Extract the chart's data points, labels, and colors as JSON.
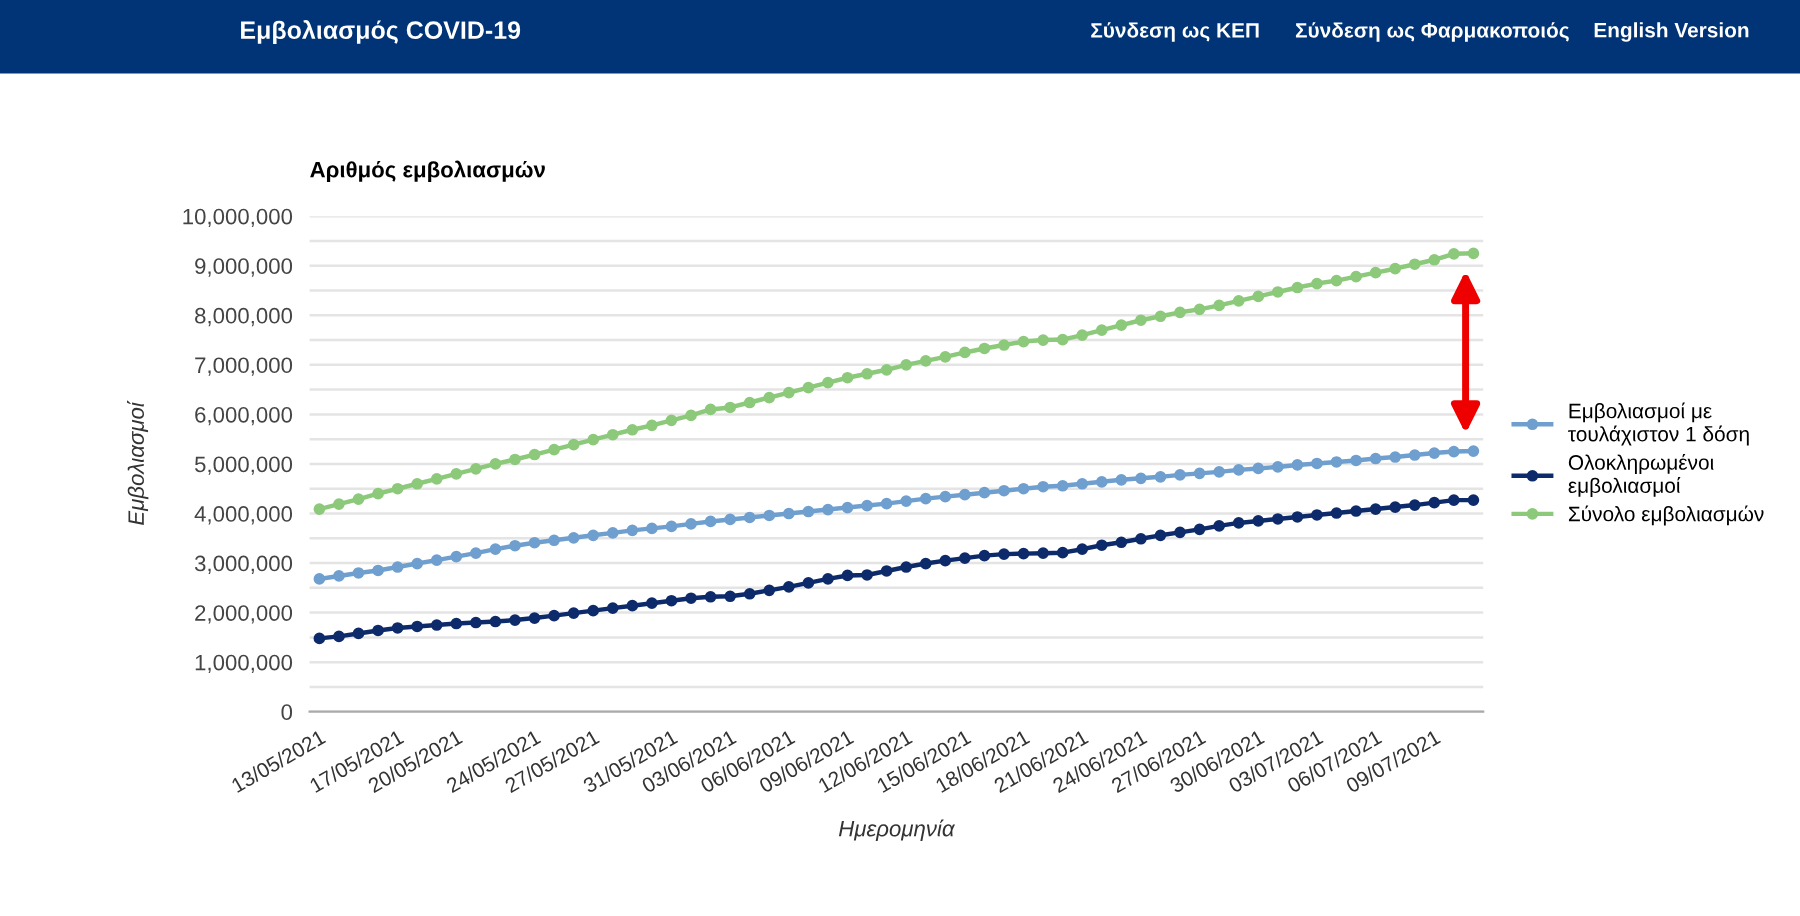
{
  "chart_data": {
    "type": "line",
    "title": "Αριθμός εμβολιασμών",
    "xlabel": "Ημερομηνία",
    "ylabel": "Εμβολιασμοί",
    "annotations": [
      "Εμβολιασμός COVID-19",
      "Σύνδεση ως ΚΕΠ",
      "Σύνδεση ως Φαρμακοποιός",
      "English Version"
    ],
    "x": [
      "2021-05-13",
      "2021-05-14",
      "2021-05-15",
      "2021-05-16",
      "2021-05-17",
      "2021-05-18",
      "2021-05-19",
      "2021-05-20",
      "2021-05-21",
      "2021-05-22",
      "2021-05-23",
      "2021-05-24",
      "2021-05-25",
      "2021-05-26",
      "2021-05-27",
      "2021-05-28",
      "2021-05-29",
      "2021-05-30",
      "2021-05-31",
      "2021-06-01",
      "2021-06-02",
      "2021-06-03",
      "2021-06-04",
      "2021-06-05",
      "2021-06-06",
      "2021-06-07",
      "2021-06-08",
      "2021-06-09",
      "2021-06-10",
      "2021-06-11",
      "2021-06-12",
      "2021-06-13",
      "2021-06-14",
      "2021-06-15",
      "2021-06-16",
      "2021-06-17",
      "2021-06-18",
      "2021-06-19",
      "2021-06-20",
      "2021-06-21",
      "2021-06-22",
      "2021-06-23",
      "2021-06-24",
      "2021-06-25",
      "2021-06-26",
      "2021-06-27",
      "2021-06-28",
      "2021-06-29",
      "2021-06-30",
      "2021-07-01",
      "2021-07-02",
      "2021-07-03",
      "2021-07-04",
      "2021-07-05",
      "2021-07-06",
      "2021-07-07",
      "2021-07-08",
      "2021-07-09",
      "2021-07-10",
      "2021-07-11"
    ],
    "series": [
      {
        "name": "Εμβολιασμοί με τουλάχιστον 1 δόση",
        "color": "#6f9fcf",
        "values": [
          2680000,
          2740000,
          2800000,
          2850000,
          2920000,
          2990000,
          3060000,
          3130000,
          3200000,
          3280000,
          3350000,
          3410000,
          3460000,
          3510000,
          3560000,
          3610000,
          3660000,
          3700000,
          3740000,
          3790000,
          3840000,
          3880000,
          3920000,
          3960000,
          4000000,
          4040000,
          4080000,
          4120000,
          4160000,
          4200000,
          4250000,
          4300000,
          4340000,
          4380000,
          4420000,
          4460000,
          4500000,
          4540000,
          4560000,
          4600000,
          4640000,
          4680000,
          4710000,
          4740000,
          4780000,
          4810000,
          4840000,
          4880000,
          4910000,
          4940000,
          4980000,
          5010000,
          5040000,
          5070000,
          5110000,
          5140000,
          5180000,
          5220000,
          5250000,
          5260000
        ]
      },
      {
        "name": "Ολοκληρωμένοι εμβολιασμοί",
        "color": "#0d2b6b",
        "values": [
          1480000,
          1520000,
          1580000,
          1640000,
          1690000,
          1720000,
          1750000,
          1780000,
          1800000,
          1820000,
          1850000,
          1890000,
          1940000,
          1990000,
          2040000,
          2090000,
          2140000,
          2190000,
          2240000,
          2290000,
          2320000,
          2330000,
          2380000,
          2450000,
          2520000,
          2600000,
          2680000,
          2750000,
          2760000,
          2840000,
          2920000,
          2990000,
          3050000,
          3100000,
          3150000,
          3180000,
          3190000,
          3200000,
          3210000,
          3280000,
          3360000,
          3420000,
          3490000,
          3560000,
          3620000,
          3680000,
          3750000,
          3810000,
          3850000,
          3890000,
          3930000,
          3970000,
          4010000,
          4050000,
          4090000,
          4130000,
          4170000,
          4220000,
          4270000,
          4270000
        ]
      },
      {
        "name": "Σύνολο εμβολιασμών",
        "color": "#8cc97a",
        "values": [
          4090000,
          4190000,
          4290000,
          4400000,
          4500000,
          4600000,
          4700000,
          4800000,
          4900000,
          5000000,
          5090000,
          5190000,
          5290000,
          5390000,
          5490000,
          5590000,
          5690000,
          5780000,
          5880000,
          5980000,
          6100000,
          6140000,
          6240000,
          6340000,
          6440000,
          6540000,
          6640000,
          6740000,
          6820000,
          6900000,
          7000000,
          7080000,
          7160000,
          7250000,
          7330000,
          7400000,
          7470000,
          7500000,
          7510000,
          7600000,
          7700000,
          7800000,
          7900000,
          7980000,
          8060000,
          8120000,
          8200000,
          8290000,
          8380000,
          8470000,
          8560000,
          8640000,
          8700000,
          8780000,
          8860000,
          8940000,
          9030000,
          9120000,
          9240000,
          9250000
        ]
      }
    ],
    "xlim": [
      "2021-05-12T12:00",
      "2021-07-11T12:00"
    ],
    "xticks": [
      {
        "value": "2021-05-13",
        "label": "13/05/2021"
      },
      {
        "value": "2021-05-17",
        "label": "17/05/2021"
      },
      {
        "value": "2021-05-20",
        "label": "20/05/2021"
      },
      {
        "value": "2021-05-24",
        "label": "24/05/2021"
      },
      {
        "value": "2021-05-27",
        "label": "27/05/2021"
      },
      {
        "value": "2021-05-31",
        "label": "31/05/2021"
      },
      {
        "value": "2021-06-03",
        "label": "03/06/2021"
      },
      {
        "value": "2021-06-06",
        "label": "06/06/2021"
      },
      {
        "value": "2021-06-09",
        "label": "09/06/2021"
      },
      {
        "value": "2021-06-12",
        "label": "12/06/2021"
      },
      {
        "value": "2021-06-15",
        "label": "15/06/2021"
      },
      {
        "value": "2021-06-18",
        "label": "18/06/2021"
      },
      {
        "value": "2021-06-21",
        "label": "21/06/2021"
      },
      {
        "value": "2021-06-24",
        "label": "24/06/2021"
      },
      {
        "value": "2021-06-27",
        "label": "27/06/2021"
      },
      {
        "value": "2021-06-30",
        "label": "30/06/2021"
      },
      {
        "value": "2021-07-03",
        "label": "03/07/2021"
      },
      {
        "value": "2021-07-06",
        "label": "06/07/2021"
      },
      {
        "value": "2021-07-09",
        "label": "09/07/2021"
      }
    ],
    "ylim": [
      0,
      10000000
    ],
    "yticks": [
      {
        "value": 0,
        "label": "0"
      },
      {
        "value": 500000,
        "label": null
      },
      {
        "value": 1000000,
        "label": "1,000,000"
      },
      {
        "value": 1500000,
        "label": null
      },
      {
        "value": 2000000,
        "label": "2,000,000"
      },
      {
        "value": 2500000,
        "label": null
      },
      {
        "value": 3000000,
        "label": "3,000,000"
      },
      {
        "value": 3500000,
        "label": null
      },
      {
        "value": 4000000,
        "label": "4,000,000"
      },
      {
        "value": 4500000,
        "label": null
      },
      {
        "value": 5000000,
        "label": "5,000,000"
      },
      {
        "value": 5500000,
        "label": null
      },
      {
        "value": 6000000,
        "label": "6,000,000"
      },
      {
        "value": 6500000,
        "label": null
      },
      {
        "value": 7000000,
        "label": "7,000,000"
      },
      {
        "value": 7500000,
        "label": null
      },
      {
        "value": 8000000,
        "label": "8,000,000"
      },
      {
        "value": 8500000,
        "label": null
      },
      {
        "value": 9000000,
        "label": "9,000,000"
      },
      {
        "value": 9500000,
        "label": null
      },
      {
        "value": 10000000,
        "label": "10,000,000"
      }
    ],
    "grid": "y",
    "legend": "right",
    "marker": "circle",
    "line_style": "solid"
  }
}
